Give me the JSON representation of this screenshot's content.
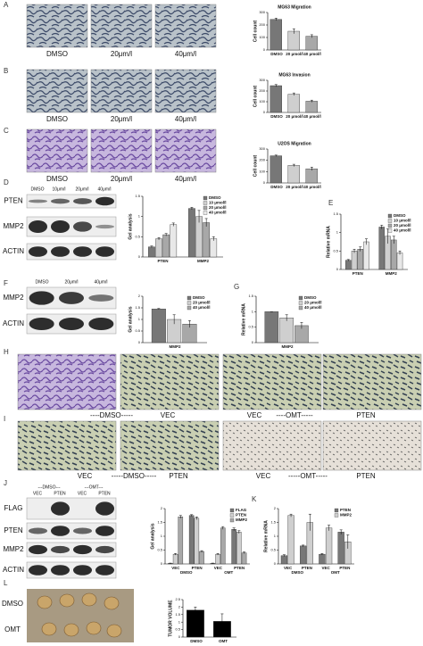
{
  "figure": {
    "panel_letters": [
      "A",
      "B",
      "C",
      "D",
      "E",
      "F",
      "G",
      "H",
      "I",
      "J",
      "K",
      "L"
    ],
    "a_captions": [
      "DMSO",
      "20μm/l",
      "40μm/l"
    ],
    "b_captions": [
      "DMSO",
      "20μm/l",
      "40μm/l"
    ],
    "c_captions": [
      "DMSO",
      "20μm/l",
      "40μm/l"
    ],
    "d_lanes": [
      "DMSO",
      "10μm/l",
      "20μm/l",
      "40μm/l"
    ],
    "d_proteins": [
      "PTEN",
      "MMP2",
      "ACTIN"
    ],
    "f_lanes": [
      "DMSO",
      "20μm/l",
      "40μm/l"
    ],
    "f_proteins": [
      "MMP2",
      "ACTIN"
    ],
    "h_captions": [
      "VEC",
      "----DMSO-----",
      "VEC",
      "----OMT-----",
      "PTEN"
    ],
    "i_captions": [
      "VEC",
      "-----DMSO-----",
      "PTEN",
      "VEC",
      "-----OMT-----",
      "PTEN"
    ],
    "j_groups": [
      "---DMSO---",
      "---OMT---"
    ],
    "j_lanes": [
      "VEC",
      "PTEN",
      "VEC",
      "PTEN"
    ],
    "j_proteins": [
      "FLAG",
      "PTEN",
      "MMP2",
      "ACTIN"
    ],
    "l_groups": [
      "DMSO",
      "OMT"
    ]
  },
  "chart_data": [
    {
      "type": "bar",
      "title": "MG63 Migration",
      "ylabel": "Cell count",
      "categories": [
        "DMSO",
        "20 μmol/l",
        "40 μmol/l"
      ],
      "series": [
        {
          "colors": [
            "#777777",
            "#cfcfcf",
            "#a8a8a8"
          ],
          "values": [
            245,
            150,
            110
          ],
          "errors": [
            10,
            20,
            12
          ]
        }
      ],
      "ylim": [
        0,
        300
      ],
      "yticks": [
        0,
        100,
        200,
        300
      ]
    },
    {
      "type": "bar",
      "title": "MG63 Invasion",
      "ylabel": "Cell count",
      "categories": [
        "DMSO",
        "20 μmol/l",
        "40 μmol/l"
      ],
      "series": [
        {
          "colors": [
            "#777777",
            "#cfcfcf",
            "#a8a8a8"
          ],
          "values": [
            250,
            170,
            105
          ],
          "errors": [
            10,
            12,
            10
          ]
        }
      ],
      "ylim": [
        0,
        300
      ],
      "yticks": [
        0,
        100,
        200,
        300
      ]
    },
    {
      "type": "bar",
      "title": "U2OS Migration",
      "ylabel": "Cell count",
      "categories": [
        "DMSO",
        "20 μmol/l",
        "40 μmol/l"
      ],
      "series": [
        {
          "colors": [
            "#777777",
            "#cfcfcf",
            "#a8a8a8"
          ],
          "values": [
            240,
            155,
            125
          ],
          "errors": [
            6,
            10,
            15
          ]
        }
      ],
      "ylim": [
        0,
        300
      ],
      "yticks": [
        0,
        100,
        200,
        300
      ]
    },
    {
      "type": "bar",
      "ylabel": "Gel analysis",
      "categories": [
        "PTEN",
        "MMP2"
      ],
      "series": [
        {
          "name": "DMSO",
          "color": "#777777",
          "values": [
            0.25,
            1.2
          ],
          "errors": [
            0.02,
            0.03
          ]
        },
        {
          "name": "10 μmol/l",
          "color": "#cfcfcf",
          "values": [
            0.45,
            1.0
          ],
          "errors": [
            0.03,
            0.15
          ]
        },
        {
          "name": "20 μmol/l",
          "color": "#a8a8a8",
          "values": [
            0.55,
            0.85
          ],
          "errors": [
            0.03,
            0.1
          ]
        },
        {
          "name": "40 μmol/l",
          "color": "#e8e8e8",
          "values": [
            0.8,
            0.45
          ],
          "errors": [
            0.04,
            0.05
          ]
        }
      ],
      "ylim": [
        0,
        1.5
      ],
      "yticks": [
        0,
        0.5,
        1,
        1.5
      ]
    },
    {
      "type": "bar",
      "ylabel": "Relative mRNA",
      "categories": [
        "PTEN",
        "MMP2"
      ],
      "series": [
        {
          "name": "DMSO",
          "color": "#777777",
          "values": [
            0.25,
            1.15
          ],
          "errors": [
            0.02,
            0.05
          ]
        },
        {
          "name": "10 μmol/l",
          "color": "#cfcfcf",
          "values": [
            0.5,
            0.9
          ],
          "errors": [
            0.05,
            0.2
          ]
        },
        {
          "name": "20 μmol/l",
          "color": "#a8a8a8",
          "values": [
            0.55,
            0.8
          ],
          "errors": [
            0.06,
            0.1
          ]
        },
        {
          "name": "40 μmol/l",
          "color": "#e8e8e8",
          "values": [
            0.75,
            0.45
          ],
          "errors": [
            0.08,
            0.05
          ]
        }
      ],
      "ylim": [
        0,
        1.5
      ],
      "yticks": [
        0,
        0.5,
        1,
        1.5
      ]
    },
    {
      "type": "bar",
      "ylabel": "Gel analysis",
      "categories": [
        "MMP2"
      ],
      "series": [
        {
          "name": "DMSO",
          "color": "#777777",
          "values": [
            1.45
          ],
          "errors": [
            0.02
          ]
        },
        {
          "name": "20 μmol/l",
          "color": "#cfcfcf",
          "values": [
            1.0
          ],
          "errors": [
            0.2
          ]
        },
        {
          "name": "40 μmol/l",
          "color": "#a8a8a8",
          "values": [
            0.8
          ],
          "errors": [
            0.15
          ]
        }
      ],
      "ylim": [
        0,
        2
      ],
      "yticks": [
        0,
        0.5,
        1,
        1.5,
        2
      ]
    },
    {
      "type": "bar",
      "ylabel": "Relative mRNA",
      "categories": [
        "MMP2"
      ],
      "series": [
        {
          "name": "DMSO",
          "color": "#777777",
          "values": [
            1.0
          ],
          "errors": [
            0
          ]
        },
        {
          "name": "20 μmol/l",
          "color": "#cfcfcf",
          "values": [
            0.8
          ],
          "errors": [
            0.1
          ]
        },
        {
          "name": "40 μmol/l",
          "color": "#a8a8a8",
          "values": [
            0.55
          ],
          "errors": [
            0.1
          ]
        }
      ],
      "ylim": [
        0,
        1.5
      ],
      "yticks": [
        0,
        0.5,
        1,
        1.5
      ]
    },
    {
      "type": "bar",
      "ylabel": "Gel analysis",
      "categories": [
        "VEC",
        "PTEN",
        "VEC",
        "PTEN"
      ],
      "group_labels": [
        "DMSO",
        "OMT"
      ],
      "series": [
        {
          "name": "FLAG",
          "color": "#777777",
          "values": [
            0.02,
            1.75,
            0.02,
            1.25
          ],
          "errors": [
            0.01,
            0.03,
            0.01,
            0.05
          ]
        },
        {
          "name": "PTEN",
          "color": "#cfcfcf",
          "values": [
            0.35,
            1.65,
            0.35,
            1.15
          ],
          "errors": [
            0.03,
            0.05,
            0.03,
            0.05
          ]
        },
        {
          "name": "MMP2",
          "color": "#a8a8a8",
          "values": [
            1.7,
            0.45,
            1.3,
            0.4
          ],
          "errors": [
            0.05,
            0.03,
            0.05,
            0.03
          ]
        }
      ],
      "ylim": [
        0,
        2
      ],
      "yticks": [
        0,
        0.5,
        1,
        1.5,
        2
      ]
    },
    {
      "type": "bar",
      "ylabel": "Relative mRNA",
      "categories": [
        "VEC",
        "PTEN",
        "VEC",
        "PTEN"
      ],
      "group_labels": [
        "DMSO",
        "OMT"
      ],
      "series": [
        {
          "name": "PTEN",
          "color": "#777777",
          "values": [
            0.3,
            0.65,
            0.35,
            1.15
          ],
          "errors": [
            0.03,
            0.03,
            0.03,
            0.08
          ]
        },
        {
          "name": "MMP2",
          "color": "#cfcfcf",
          "values": [
            1.75,
            1.5,
            1.3,
            0.8
          ],
          "errors": [
            0.05,
            0.3,
            0.1,
            0.25
          ]
        }
      ],
      "ylim": [
        0,
        2
      ],
      "yticks": [
        0,
        0.5,
        1,
        1.5,
        2
      ]
    },
    {
      "type": "bar",
      "ylabel": "TUMOR VOLUME",
      "categories": [
        "DMSO",
        "OMT"
      ],
      "series": [
        {
          "color": "#000000",
          "values": [
            1.8,
            1.05
          ],
          "errors": [
            0.2,
            0.5
          ]
        }
      ],
      "ylim": [
        0,
        2.5
      ],
      "yticks": [
        0,
        0.5,
        1,
        1.5,
        2,
        2.5
      ]
    }
  ]
}
